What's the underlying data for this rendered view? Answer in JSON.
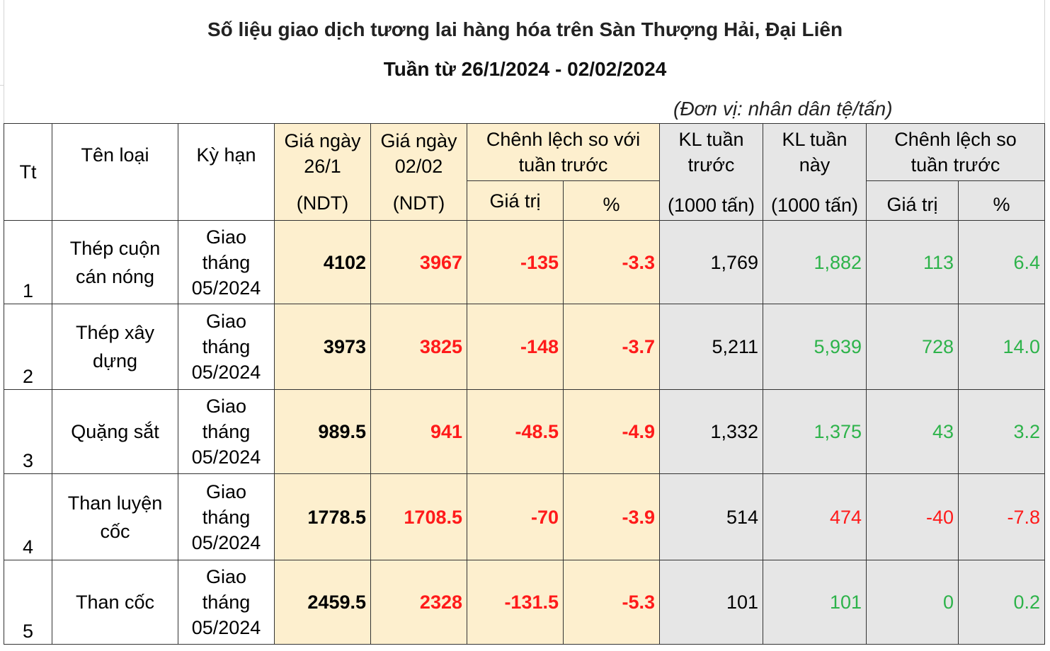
{
  "title": "Số liệu giao dịch tương lai hàng hóa trên Sàn Thượng Hải, Đại Liên",
  "subtitle": "Tuần từ 26/1/2024 - 02/02/2024",
  "unit_note": "(Đơn vị: nhân dân tệ/tấn)",
  "headers": {
    "tt": "Tt",
    "name": "Tên loại",
    "term": "Kỳ hạn",
    "price_prev_l1": "Giá ngày",
    "price_prev_l2": "26/1",
    "price_prev_unit": "(NDT)",
    "price_curr_l1": "Giá ngày",
    "price_curr_l2": "02/02",
    "price_curr_unit": "(NDT)",
    "price_diff_l1": "Chênh lệch so với",
    "price_diff_l2": "tuần trước",
    "value": "Giá trị",
    "pct": "%",
    "vol_prev_l1": "KL tuần",
    "vol_prev_l2": "trước",
    "vol_unit": "(1000 tấn)",
    "vol_curr_l1": "KL tuần",
    "vol_curr_l2": "này",
    "vol_diff_l1": "Chênh lệch so",
    "vol_diff_l2": "tuần trước",
    "value2": "Giá trị",
    "pct2": "%"
  },
  "rows": [
    {
      "tt": "1",
      "name": "Thép cuộn cán nóng",
      "term_l1": "Giao",
      "term_l2": "tháng",
      "term_l3": "05/2024",
      "price_prev": "4102",
      "price_curr": "3967",
      "price_diff": "-135",
      "price_pct": "-3.3",
      "vol_prev": "1,769",
      "vol_curr": "1,882",
      "vol_diff": "113",
      "vol_pct": "6.4"
    },
    {
      "tt": "2",
      "name": "Thép xây dựng",
      "term_l1": "Giao",
      "term_l2": "tháng",
      "term_l3": "05/2024",
      "price_prev": "3973",
      "price_curr": "3825",
      "price_diff": "-148",
      "price_pct": "-3.7",
      "vol_prev": "5,211",
      "vol_curr": "5,939",
      "vol_diff": "728",
      "vol_pct": "14.0"
    },
    {
      "tt": "3",
      "name": "Quặng sắt",
      "term_l1": "Giao",
      "term_l2": "tháng",
      "term_l3": "05/2024",
      "price_prev": "989.5",
      "price_curr": "941",
      "price_diff": "-48.5",
      "price_pct": "-4.9",
      "vol_prev": "1,332",
      "vol_curr": "1,375",
      "vol_diff": "43",
      "vol_pct": "3.2"
    },
    {
      "tt": "4",
      "name": "Than luyện cốc",
      "term_l1": "Giao",
      "term_l2": "tháng",
      "term_l3": "05/2024",
      "price_prev": "1778.5",
      "price_curr": "1708.5",
      "price_diff": "-70",
      "price_pct": "-3.9",
      "vol_prev": "514",
      "vol_curr": "474",
      "vol_diff": "-40",
      "vol_pct": "-7.8"
    },
    {
      "tt": "5",
      "name": "Than cốc",
      "term_l1": "Giao",
      "term_l2": "tháng",
      "term_l3": "05/2024",
      "price_prev": "2459.5",
      "price_curr": "2328",
      "price_diff": "-131.5",
      "price_pct": "-5.3",
      "vol_prev": "101",
      "vol_curr": "101",
      "vol_diff": "0",
      "vol_pct": "0.2"
    }
  ],
  "colors": {
    "price_header_bg": "#fdefce",
    "volume_bg": "#e6e6e6",
    "negative": "#ff1a1a",
    "positive": "#2db34a"
  }
}
